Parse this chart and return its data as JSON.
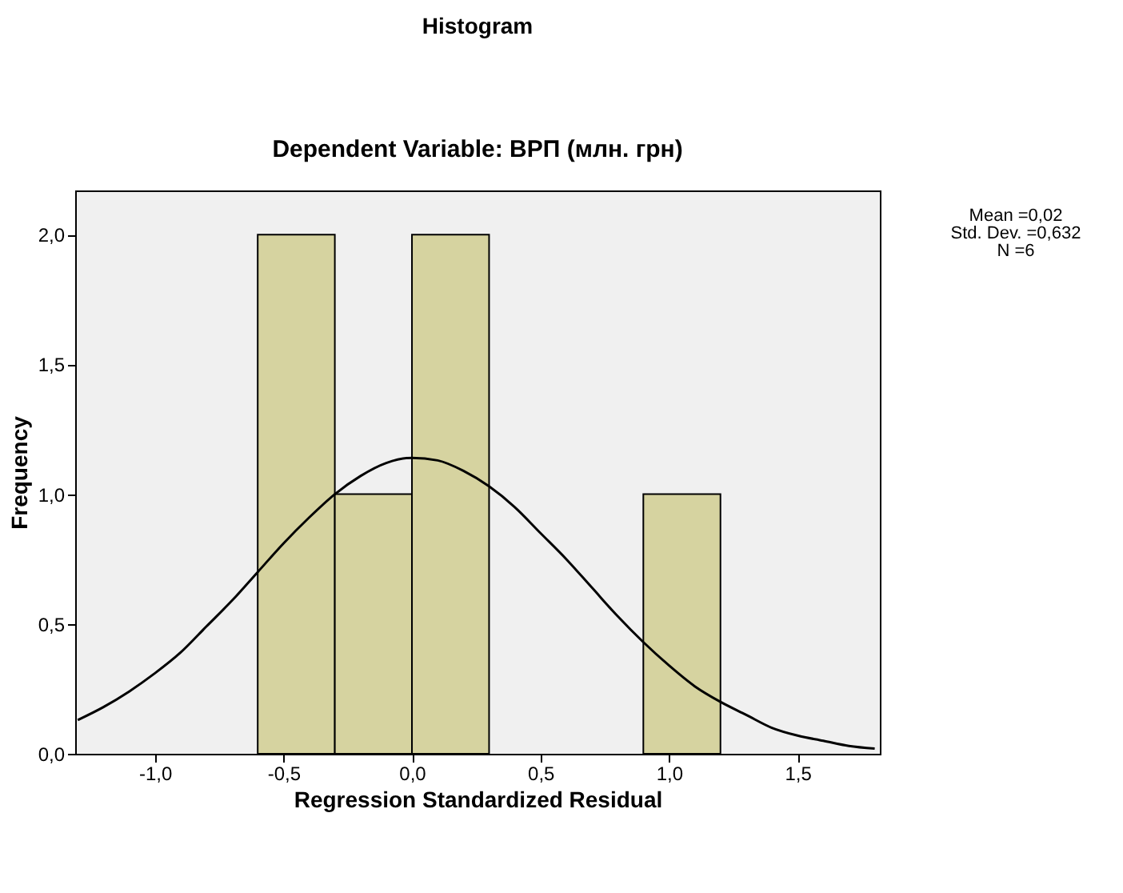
{
  "chart_data": {
    "type": "histogram",
    "title": "Histogram",
    "subtitle": "Dependent Variable: ВРП (млн. грн)",
    "xlabel": "Regression Standardized Residual",
    "ylabel": "Frequency",
    "bins": [
      -0.6,
      -0.3,
      0.0,
      0.3,
      0.6,
      0.9,
      1.2
    ],
    "values": [
      2,
      1,
      2,
      0,
      0,
      1
    ],
    "color": "#d6d3a0",
    "series": [
      {
        "type": "line",
        "color": "#000000",
        "x": [
          -1.3,
          -1.2,
          -1.1,
          -1.0,
          -0.9,
          -0.8,
          -0.7,
          -0.6,
          -0.5,
          -0.4,
          -0.3,
          -0.2,
          -0.1,
          0.0,
          0.1,
          0.2,
          0.3,
          0.4,
          0.5,
          0.6,
          0.7,
          0.8,
          0.9,
          1.0,
          1.1,
          1.2,
          1.3,
          1.4,
          1.5,
          1.6,
          1.7,
          1.8
        ],
        "values": [
          0.13,
          0.18,
          0.24,
          0.31,
          0.39,
          0.49,
          0.59,
          0.7,
          0.81,
          0.91,
          1.0,
          1.07,
          1.12,
          1.14,
          1.13,
          1.09,
          1.03,
          0.95,
          0.85,
          0.75,
          0.64,
          0.53,
          0.43,
          0.34,
          0.26,
          0.2,
          0.15,
          0.1,
          0.07,
          0.05,
          0.03,
          0.02
        ]
      }
    ],
    "xlim": [
      -1.31,
      1.82
    ],
    "xticks": [
      {
        "value": -1.0,
        "label": "-1,0"
      },
      {
        "value": -0.5,
        "label": "-0,5"
      },
      {
        "value": 0.0,
        "label": "0,0"
      },
      {
        "value": 0.5,
        "label": "0,5"
      },
      {
        "value": 1.0,
        "label": "1,0"
      },
      {
        "value": 1.5,
        "label": "1,5"
      }
    ],
    "ylim": [
      0,
      2.17
    ],
    "yticks": [
      {
        "value": 0.0,
        "label": "0,0"
      },
      {
        "value": 0.5,
        "label": "0,5"
      },
      {
        "value": 1.0,
        "label": "1,0"
      },
      {
        "value": 1.5,
        "label": "1,5"
      },
      {
        "value": 2.0,
        "label": "2,0"
      }
    ],
    "grid": false,
    "annotations": [
      "Mean =0,02",
      "Std. Dev. =0,632",
      "N =6"
    ]
  }
}
